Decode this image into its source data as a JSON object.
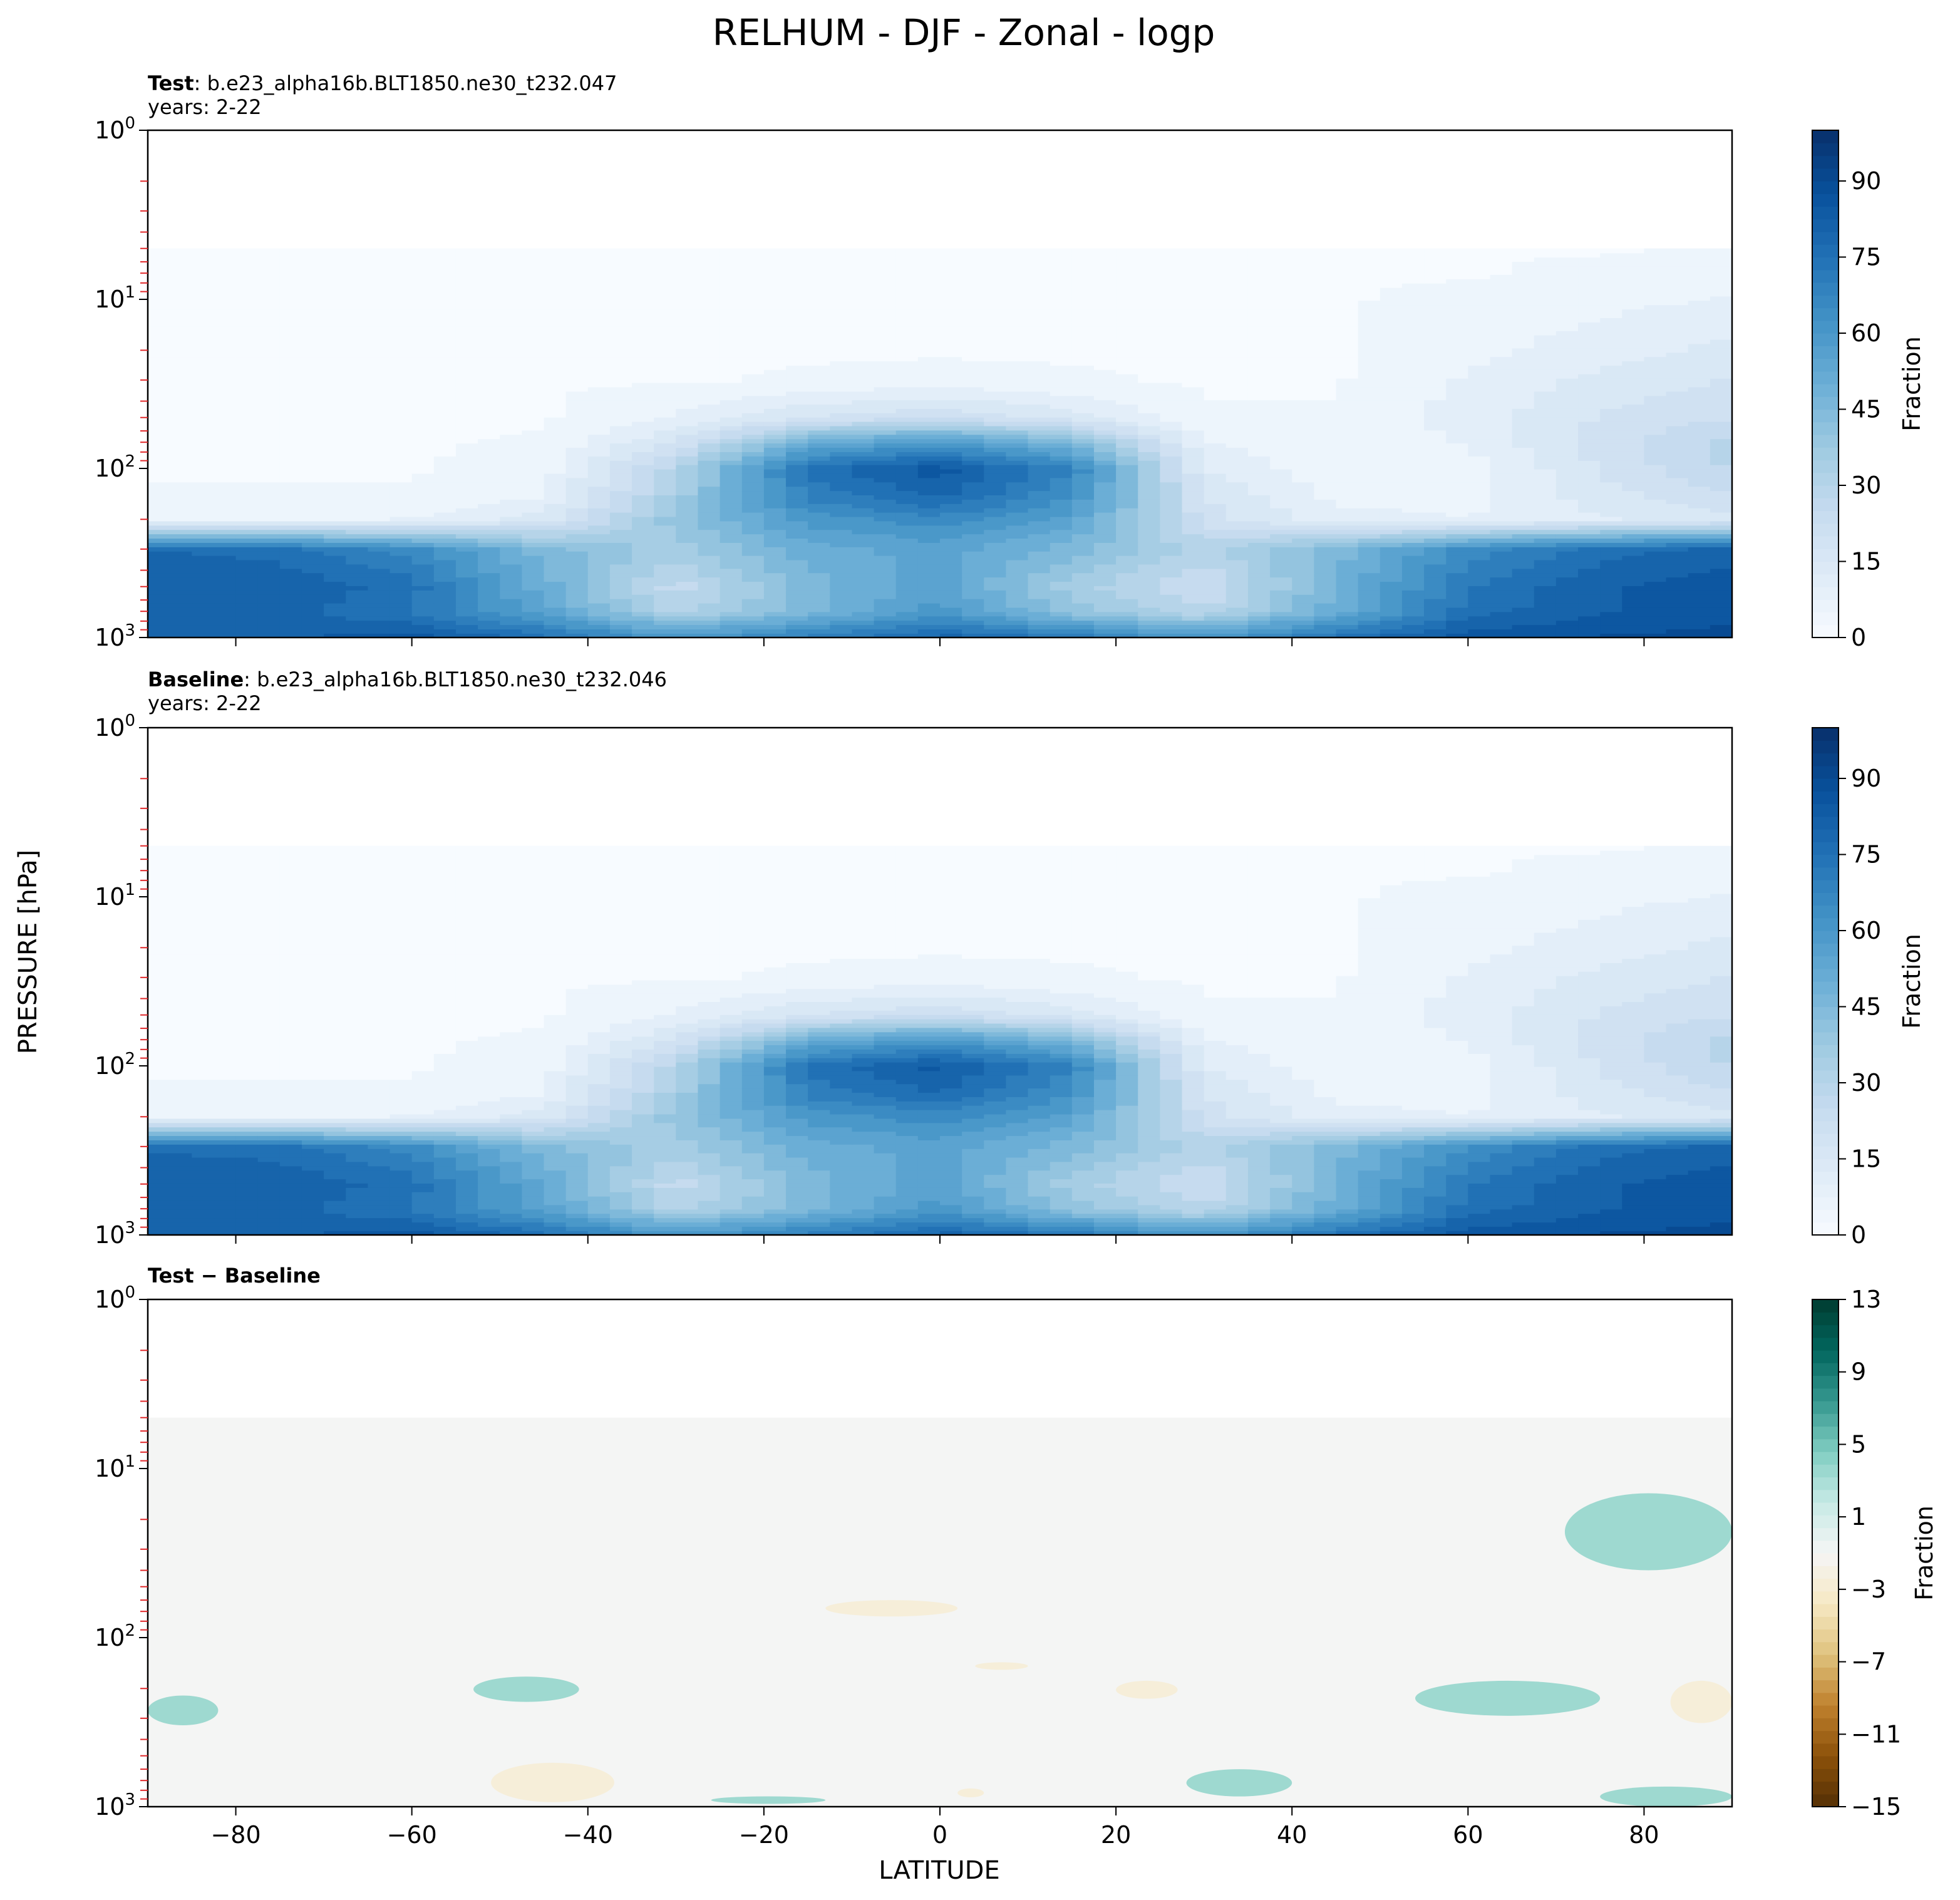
{
  "figure": {
    "title": "RELHUM - DJF - Zonal - logp",
    "ylabel": "PRESSURE [hPa]",
    "xlabel": "LATITUDE"
  },
  "chart_data": [
    {
      "type": "heatmap",
      "subtitle_bold": "Test",
      "subtitle_rest": ": b.e23_alpha16b.BLT1850.ne30_t232.047",
      "years": "years: 2-22",
      "x_ticks": [
        -80,
        -60,
        -40,
        -20,
        0,
        20,
        40,
        60,
        80
      ],
      "xlim": [
        -90,
        90
      ],
      "y_ticks": [
        "10^0",
        "10^1",
        "10^2",
        "10^3"
      ],
      "ylim_hPa": [
        1000,
        1
      ],
      "y_scale": "log",
      "colorbar": {
        "label": "Fraction",
        "ticks": [
          0,
          15,
          30,
          45,
          60,
          75,
          90
        ],
        "range": [
          0,
          100
        ],
        "colormap": "Blues"
      },
      "levels_hPa": [
        1000,
        700,
        500,
        300,
        200,
        150,
        100,
        70,
        50,
        30,
        20,
        10,
        7,
        5
      ],
      "lats": [
        -90,
        -75,
        -60,
        -45,
        -30,
        -15,
        0,
        15,
        30,
        45,
        60,
        75,
        90
      ],
      "values": [
        [
          80,
          82,
          85,
          75,
          60,
          70,
          80,
          72,
          60,
          75,
          85,
          88,
          90
        ],
        [
          80,
          80,
          72,
          55,
          30,
          45,
          60,
          40,
          28,
          50,
          75,
          82,
          85
        ],
        [
          82,
          82,
          75,
          50,
          25,
          45,
          55,
          35,
          22,
          48,
          72,
          82,
          85
        ],
        [
          78,
          75,
          65,
          45,
          35,
          50,
          55,
          45,
          30,
          45,
          65,
          75,
          80
        ],
        [
          5,
          5,
          8,
          15,
          40,
          60,
          65,
          55,
          20,
          10,
          8,
          12,
          15
        ],
        [
          3,
          3,
          3,
          8,
          35,
          68,
          78,
          62,
          18,
          6,
          5,
          15,
          22
        ],
        [
          2,
          2,
          2,
          5,
          30,
          75,
          85,
          68,
          12,
          4,
          5,
          18,
          28
        ],
        [
          2,
          2,
          2,
          3,
          18,
          50,
          60,
          45,
          8,
          3,
          8,
          20,
          30
        ],
        [
          2,
          2,
          2,
          2,
          8,
          18,
          22,
          15,
          3,
          3,
          10,
          18,
          22
        ],
        [
          2,
          2,
          2,
          2,
          2,
          3,
          4,
          3,
          2,
          2,
          8,
          14,
          18
        ],
        [
          2,
          2,
          2,
          2,
          2,
          2,
          2,
          2,
          2,
          2,
          6,
          10,
          14
        ],
        [
          2,
          2,
          2,
          2,
          2,
          2,
          2,
          2,
          2,
          2,
          4,
          6,
          8
        ],
        [
          2,
          2,
          2,
          2,
          2,
          2,
          2,
          2,
          2,
          2,
          2,
          4,
          5
        ],
        [
          2,
          2,
          2,
          2,
          2,
          2,
          2,
          2,
          2,
          2,
          2,
          2,
          3
        ]
      ]
    },
    {
      "type": "heatmap",
      "subtitle_bold": "Baseline",
      "subtitle_rest": ": b.e23_alpha16b.BLT1850.ne30_t232.046",
      "years": "years: 2-22",
      "x_ticks": [
        -80,
        -60,
        -40,
        -20,
        0,
        20,
        40,
        60,
        80
      ],
      "xlim": [
        -90,
        90
      ],
      "y_ticks": [
        "10^0",
        "10^1",
        "10^2",
        "10^3"
      ],
      "ylim_hPa": [
        1000,
        1
      ],
      "y_scale": "log",
      "colorbar": {
        "label": "Fraction",
        "ticks": [
          0,
          15,
          30,
          45,
          60,
          75,
          90
        ],
        "range": [
          0,
          100
        ],
        "colormap": "Blues"
      },
      "levels_hPa": [
        1000,
        700,
        500,
        300,
        200,
        150,
        100,
        70,
        50,
        30,
        20,
        10,
        7,
        5
      ],
      "lats": [
        -90,
        -75,
        -60,
        -45,
        -30,
        -15,
        0,
        15,
        30,
        45,
        60,
        75,
        90
      ],
      "values": [
        [
          80,
          82,
          85,
          75,
          60,
          70,
          80,
          72,
          60,
          75,
          85,
          88,
          90
        ],
        [
          80,
          80,
          72,
          55,
          30,
          45,
          60,
          40,
          28,
          50,
          75,
          82,
          85
        ],
        [
          82,
          82,
          75,
          52,
          25,
          45,
          55,
          35,
          22,
          48,
          72,
          82,
          85
        ],
        [
          77,
          75,
          65,
          44,
          35,
          50,
          55,
          45,
          30,
          45,
          63,
          75,
          80
        ],
        [
          5,
          5,
          8,
          15,
          40,
          60,
          65,
          55,
          20,
          10,
          8,
          12,
          15
        ],
        [
          3,
          3,
          3,
          8,
          35,
          68,
          77,
          62,
          18,
          6,
          5,
          15,
          22
        ],
        [
          2,
          2,
          2,
          5,
          30,
          75,
          84,
          68,
          12,
          4,
          5,
          18,
          28
        ],
        [
          2,
          2,
          2,
          3,
          18,
          50,
          60,
          45,
          8,
          3,
          8,
          20,
          30
        ],
        [
          2,
          2,
          2,
          2,
          8,
          18,
          22,
          15,
          3,
          3,
          10,
          18,
          22
        ],
        [
          2,
          2,
          2,
          2,
          2,
          3,
          4,
          3,
          2,
          2,
          8,
          14,
          18
        ],
        [
          2,
          2,
          2,
          2,
          2,
          2,
          2,
          2,
          2,
          2,
          6,
          10,
          14
        ],
        [
          2,
          2,
          2,
          2,
          2,
          2,
          2,
          2,
          2,
          2,
          4,
          6,
          8
        ],
        [
          2,
          2,
          2,
          2,
          2,
          2,
          2,
          2,
          2,
          2,
          2,
          4,
          5
        ],
        [
          2,
          2,
          2,
          2,
          2,
          2,
          2,
          2,
          2,
          2,
          2,
          2,
          3
        ]
      ]
    },
    {
      "type": "heatmap",
      "subtitle_bold": "Test − Baseline",
      "subtitle_rest": "",
      "years": "",
      "x_ticks": [
        -80,
        -60,
        -40,
        -20,
        0,
        20,
        40,
        60,
        80
      ],
      "xlim": [
        -90,
        90
      ],
      "y_ticks": [
        "10^0",
        "10^1",
        "10^2",
        "10^3"
      ],
      "ylim_hPa": [
        1000,
        1
      ],
      "y_scale": "log",
      "colorbar": {
        "label": "Fraction",
        "ticks": [
          -15,
          -11,
          -7,
          -3,
          1,
          5,
          9,
          13
        ],
        "range": [
          -15,
          13
        ],
        "colormap": "BrBG"
      },
      "background_value": 0,
      "background_top_hPa": 5,
      "anomalies": [
        {
          "lat_min": -90,
          "lat_max": -82,
          "p_min": 220,
          "p_max": 330,
          "value": 2
        },
        {
          "lat_min": -53,
          "lat_max": -41,
          "p_min": 170,
          "p_max": 240,
          "value": 2
        },
        {
          "lat_min": -51,
          "lat_max": -37,
          "p_min": 550,
          "p_max": 940,
          "value": -2
        },
        {
          "lat_min": -26,
          "lat_max": -13,
          "p_min": 880,
          "p_max": 950,
          "value": 2
        },
        {
          "lat_min": -13,
          "lat_max": 2,
          "p_min": 60,
          "p_max": 75,
          "value": -2
        },
        {
          "lat_min": 4,
          "lat_max": 10,
          "p_min": 140,
          "p_max": 155,
          "value": -2
        },
        {
          "lat_min": 2,
          "lat_max": 5,
          "p_min": 780,
          "p_max": 880,
          "value": -2
        },
        {
          "lat_min": 20,
          "lat_max": 27,
          "p_min": 180,
          "p_max": 230,
          "value": -2
        },
        {
          "lat_min": 28,
          "lat_max": 40,
          "p_min": 600,
          "p_max": 870,
          "value": 2
        },
        {
          "lat_min": 54,
          "lat_max": 75,
          "p_min": 180,
          "p_max": 290,
          "value": 2
        },
        {
          "lat_min": 71,
          "lat_max": 90,
          "p_min": 14,
          "p_max": 40,
          "value": 2
        },
        {
          "lat_min": 83,
          "lat_max": 90,
          "p_min": 180,
          "p_max": 320,
          "value": -2
        },
        {
          "lat_min": 75,
          "lat_max": 90,
          "p_min": 760,
          "p_max": 1000,
          "value": 2
        }
      ]
    }
  ]
}
